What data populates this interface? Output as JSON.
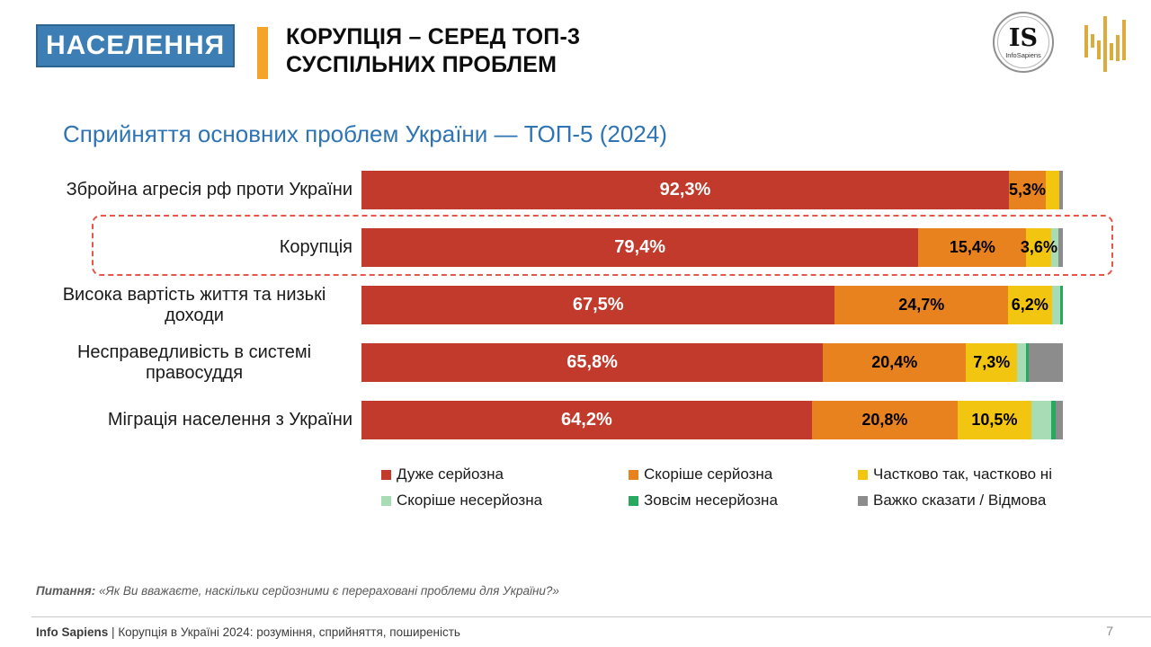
{
  "header": {
    "badge_label": "НАСЕЛЕННЯ",
    "title_line1": "КОРУПЦІЯ – СЕРЕД ТОП-3",
    "title_line2": "СУСПІЛЬНИХ ПРОБЛЕМ",
    "logo_initials": "IS",
    "logo_name": "InfoSapiens"
  },
  "chart_data": {
    "type": "bar",
    "stacked": true,
    "orientation": "horizontal",
    "title": "Сприйняття основних проблем України — ТОП-5 (2024)",
    "x_range_percent": [
      0,
      100
    ],
    "categories": [
      "Збройна агресія рф проти України",
      "Корупція",
      "Висока вартість життя та низькі доходи",
      "Несправедливість в системі правосуддя",
      "Міграція населення з України"
    ],
    "highlighted_category": "Корупція",
    "legend_position": "bottom",
    "series": [
      {
        "name": "Дуже серйозна",
        "color": "#c13a2b",
        "values": [
          92.3,
          79.4,
          67.5,
          65.8,
          64.2
        ],
        "data_labels": [
          "92,3%",
          "79,4%",
          "67,5%",
          "65,8%",
          "64,2%"
        ]
      },
      {
        "name": "Скоріше серйозна",
        "color": "#e8821f",
        "values": [
          5.3,
          15.4,
          24.7,
          20.4,
          20.8
        ],
        "data_labels": [
          "5,3%",
          "15,4%",
          "24,7%",
          "20,4%",
          "20,8%"
        ]
      },
      {
        "name": "Частково так, частково ні",
        "color": "#f2c511",
        "values": [
          1.9,
          3.6,
          6.2,
          7.3,
          10.5
        ],
        "data_labels": [
          "",
          "3,6%",
          "6,2%",
          "7,3%",
          "10,5%"
        ]
      },
      {
        "name": "Скоріше несерйозна",
        "color": "#a8dcb5",
        "values": [
          0,
          1.0,
          1.2,
          1.2,
          2.9
        ],
        "data_labels": [
          "",
          "",
          "",
          "",
          ""
        ]
      },
      {
        "name": "Зовсім несерйозна",
        "color": "#27a960",
        "values": [
          0,
          0,
          0.4,
          0.4,
          0.6
        ],
        "data_labels": [
          "",
          "",
          "",
          "",
          ""
        ]
      },
      {
        "name": "Важко сказати / Відмова",
        "color": "#8c8c8c",
        "values": [
          0.5,
          0.6,
          0,
          4.9,
          1.0
        ],
        "data_labels": [
          "",
          "",
          "",
          "",
          ""
        ]
      }
    ]
  },
  "question_note": {
    "prefix": "Питання:",
    "text": "«Як Ви вважаєте, наскільки серйозними є перераховані проблеми для України?»"
  },
  "footer": {
    "brand": "Info Sapiens",
    "separator": "|",
    "text": "Корупція в Україні 2024: розуміння, сприйняття, поширеність",
    "page_number": "7"
  }
}
